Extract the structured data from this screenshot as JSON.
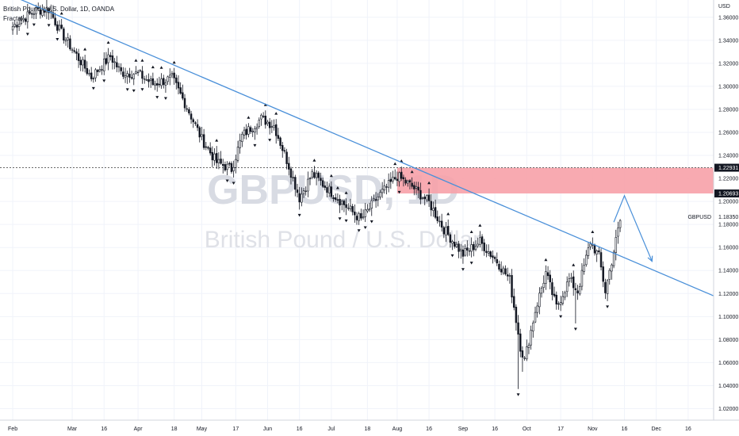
{
  "legend": {
    "title": "British Pound / U.S. Dollar, 1D, OANDA",
    "indicator": "Fractal"
  },
  "watermark": {
    "ticker": "GBPUSD, 1D",
    "name": "British Pound / U.S. Dollar"
  },
  "chart_data": {
    "type": "candlestick",
    "symbol_label": "GBPUSD",
    "currency": "USD",
    "ylim": [
      1.01,
      1.375
    ],
    "y_ticks": [
      {
        "label": "1.36000",
        "value": 1.36
      },
      {
        "label": "1.34000",
        "value": 1.34
      },
      {
        "label": "1.32000",
        "value": 1.32
      },
      {
        "label": "1.30000",
        "value": 1.3
      },
      {
        "label": "1.28000",
        "value": 1.28
      },
      {
        "label": "1.26000",
        "value": 1.26
      },
      {
        "label": "1.24000",
        "value": 1.24
      },
      {
        "label": "1.22000",
        "value": 1.22
      },
      {
        "label": "1.20000",
        "value": 1.2
      },
      {
        "label": "1.18000",
        "value": 1.18
      },
      {
        "label": "1.16000",
        "value": 1.16
      },
      {
        "label": "1.14000",
        "value": 1.14
      },
      {
        "label": "1.12000",
        "value": 1.12
      },
      {
        "label": "1.10000",
        "value": 1.1
      },
      {
        "label": "1.08000",
        "value": 1.08
      },
      {
        "label": "1.06000",
        "value": 1.06
      },
      {
        "label": "1.04000",
        "value": 1.04
      },
      {
        "label": "1.02000",
        "value": 1.02
      }
    ],
    "x_ticks": [
      {
        "label": "Feb",
        "day": 0
      },
      {
        "label": "Mar",
        "day": 28
      },
      {
        "label": "16",
        "day": 43
      },
      {
        "label": "Apr",
        "day": 59
      },
      {
        "label": "18",
        "day": 76
      },
      {
        "label": "May",
        "day": 89
      },
      {
        "label": "17",
        "day": 105
      },
      {
        "label": "Jun",
        "day": 120
      },
      {
        "label": "16",
        "day": 135
      },
      {
        "label": "Jul",
        "day": 150
      },
      {
        "label": "18",
        "day": 167
      },
      {
        "label": "Aug",
        "day": 181
      },
      {
        "label": "16",
        "day": 196
      },
      {
        "label": "Sep",
        "day": 212
      },
      {
        "label": "16",
        "day": 227
      },
      {
        "label": "Oct",
        "day": 242
      },
      {
        "label": "17",
        "day": 258
      },
      {
        "label": "Nov",
        "day": 273
      },
      {
        "label": "16",
        "day": 288
      },
      {
        "label": "Dec",
        "day": 303
      },
      {
        "label": "16",
        "day": 318
      }
    ],
    "x_range_days": [
      -6,
      330
    ],
    "price_tags": [
      {
        "label": "1.22931",
        "value": 1.22931
      },
      {
        "label": "1.20693",
        "value": 1.20693
      }
    ],
    "last_price": {
      "label": "GBPUSD",
      "value": "1.18350",
      "y": 1.1835
    },
    "resistance_zone": {
      "from_day": 181,
      "to_day": 330,
      "low": 1.20693,
      "high": 1.22931,
      "color": "#f7a1a8"
    },
    "trendline": {
      "start": {
        "day": 3,
        "price": 1.376
      },
      "end": {
        "day": 330,
        "price": 1.118
      },
      "color": "#4a90d9"
    },
    "projection": [
      {
        "day": 283,
        "price": 1.182
      },
      {
        "day": 288,
        "price": 1.205
      },
      {
        "day": 301,
        "price": 1.148
      }
    ],
    "dashed_level": 1.22931,
    "colors": {
      "up": "#ffffff",
      "down": "#131722",
      "grid": "#f0f3fa",
      "line": "#4a90d9"
    },
    "anchors": [
      {
        "day": 0,
        "close": 1.352
      },
      {
        "day": 5,
        "close": 1.359
      },
      {
        "day": 11,
        "close": 1.366
      },
      {
        "day": 17,
        "close": 1.367
      },
      {
        "day": 22,
        "close": 1.349
      },
      {
        "day": 30,
        "close": 1.327
      },
      {
        "day": 37,
        "close": 1.308
      },
      {
        "day": 46,
        "close": 1.326
      },
      {
        "day": 51,
        "close": 1.312
      },
      {
        "day": 59,
        "close": 1.311
      },
      {
        "day": 66,
        "close": 1.302
      },
      {
        "day": 75,
        "close": 1.307
      },
      {
        "day": 82,
        "close": 1.282
      },
      {
        "day": 89,
        "close": 1.254
      },
      {
        "day": 96,
        "close": 1.234
      },
      {
        "day": 103,
        "close": 1.228
      },
      {
        "day": 108,
        "close": 1.257
      },
      {
        "day": 117,
        "close": 1.272
      },
      {
        "day": 123,
        "close": 1.266
      },
      {
        "day": 130,
        "close": 1.231
      },
      {
        "day": 135,
        "close": 1.203
      },
      {
        "day": 141,
        "close": 1.224
      },
      {
        "day": 150,
        "close": 1.208
      },
      {
        "day": 158,
        "close": 1.194
      },
      {
        "day": 164,
        "close": 1.184
      },
      {
        "day": 172,
        "close": 1.204
      },
      {
        "day": 181,
        "close": 1.222
      },
      {
        "day": 188,
        "close": 1.213
      },
      {
        "day": 196,
        "close": 1.199
      },
      {
        "day": 203,
        "close": 1.176
      },
      {
        "day": 212,
        "close": 1.154
      },
      {
        "day": 220,
        "close": 1.165
      },
      {
        "day": 228,
        "close": 1.148
      },
      {
        "day": 234,
        "close": 1.132
      },
      {
        "day": 239,
        "close": 1.074
      },
      {
        "day": 241,
        "close": 1.062
      },
      {
        "day": 246,
        "close": 1.105
      },
      {
        "day": 251,
        "close": 1.138
      },
      {
        "day": 256,
        "close": 1.108
      },
      {
        "day": 262,
        "close": 1.132
      },
      {
        "day": 266,
        "close": 1.122
      },
      {
        "day": 272,
        "close": 1.165
      },
      {
        "day": 276,
        "close": 1.152
      },
      {
        "day": 279,
        "close": 1.122
      },
      {
        "day": 283,
        "close": 1.157
      },
      {
        "day": 286,
        "close": 1.1835
      }
    ],
    "spikes": [
      {
        "day": 238,
        "low": 1.037
      },
      {
        "day": 240,
        "low": 1.052
      },
      {
        "day": 265,
        "low": 1.094
      },
      {
        "day": 282,
        "low": 1.132
      }
    ]
  }
}
